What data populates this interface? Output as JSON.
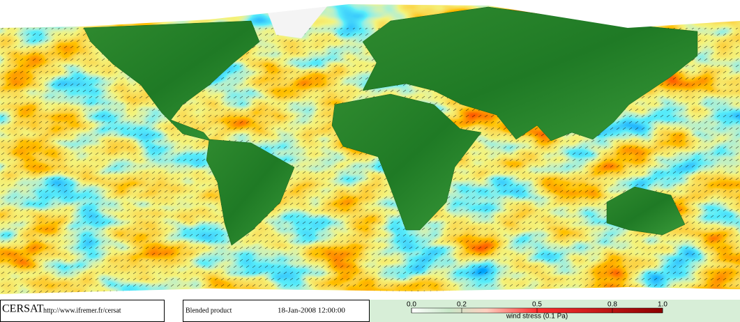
{
  "logo": "CERSAT",
  "url": "http://www.ifremer.fr/cersat",
  "product": "Blended product",
  "timestamp": "18-Jan-2008 12:00:00",
  "colorbar": {
    "label": "wind stress (0.1 Pa)",
    "lim": [
      0,
      1
    ],
    "ticks": [
      {
        "value": 0,
        "label": "0.0"
      },
      0.2,
      0.5,
      0.8,
      {
        "value": 1,
        "label": "1.0"
      }
    ]
  }
}
